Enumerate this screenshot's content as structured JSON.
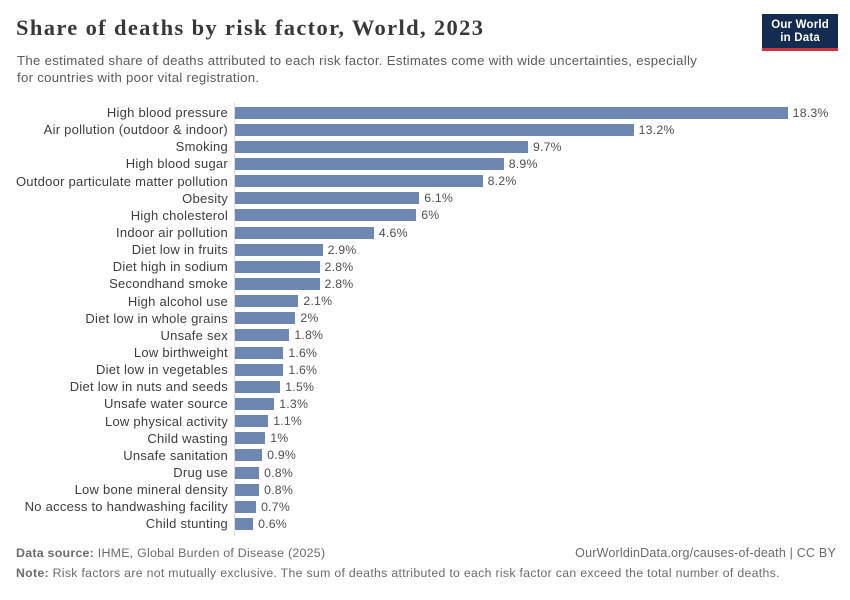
{
  "header": {
    "title": "Share of deaths by risk factor, World, 2023",
    "subtitle": "The estimated share of deaths attributed to each risk factor. Estimates come with wide uncertainties, especially for countries with poor vital registration."
  },
  "logo": {
    "line1": "Our World",
    "line2": "in Data",
    "bg_color": "#132c4f",
    "accent_color": "#d13438"
  },
  "chart_data": {
    "type": "bar",
    "orientation": "horizontal",
    "title": "Share of deaths by risk factor, World, 2023",
    "categories": [
      "High blood pressure",
      "Air pollution (outdoor & indoor)",
      "Smoking",
      "High blood sugar",
      "Outdoor particulate matter pollution",
      "Obesity",
      "High cholesterol",
      "Indoor air pollution",
      "Diet low in fruits",
      "Diet high in sodium",
      "Secondhand smoke",
      "High alcohol use",
      "Diet low in whole grains",
      "Unsafe sex",
      "Low birthweight",
      "Diet low in vegetables",
      "Diet low in nuts and seeds",
      "Unsafe water source",
      "Low physical activity",
      "Child wasting",
      "Unsafe sanitation",
      "Drug use",
      "Low bone mineral density",
      "No access to handwashing facility",
      "Child stunting"
    ],
    "values": [
      18.3,
      13.2,
      9.7,
      8.9,
      8.2,
      6.1,
      6,
      4.6,
      2.9,
      2.8,
      2.8,
      2.1,
      2,
      1.8,
      1.6,
      1.6,
      1.5,
      1.3,
      1.1,
      1,
      0.9,
      0.8,
      0.8,
      0.7,
      0.6
    ],
    "value_labels": [
      "18.3%",
      "13.2%",
      "9.7%",
      "8.9%",
      "8.2%",
      "6.1%",
      "6%",
      "4.6%",
      "2.9%",
      "2.8%",
      "2.8%",
      "2.1%",
      "2%",
      "1.8%",
      "1.6%",
      "1.6%",
      "1.5%",
      "1.3%",
      "1.1%",
      "1%",
      "0.9%",
      "0.8%",
      "0.8%",
      "0.7%",
      "0.6%"
    ],
    "bar_color": "#6d87b0",
    "xlim": [
      0,
      18.3
    ],
    "grid": false,
    "unit": "%"
  },
  "footer": {
    "data_source_label": "Data source:",
    "data_source_text": " IHME, Global Burden of Disease (2025)",
    "url_text": "OurWorldinData.org/causes-of-death | CC BY",
    "note_label": "Note:",
    "note_text": " Risk factors are not mutually exclusive. The sum of deaths attributed to each risk factor can exceed the total number of deaths."
  }
}
